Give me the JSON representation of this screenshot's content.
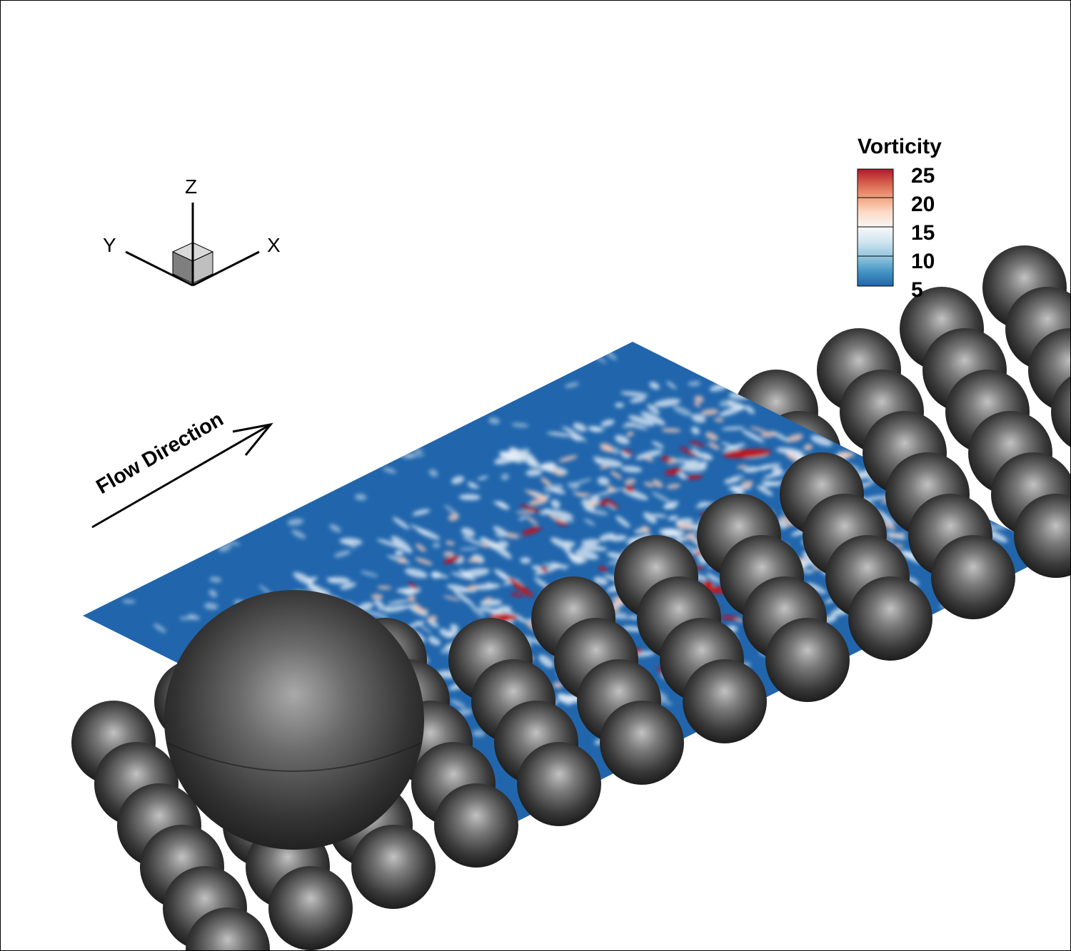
{
  "axes_triad": {
    "x_label": "X",
    "y_label": "Y",
    "z_label": "Z"
  },
  "annotation": {
    "flow_label": "Flow Direction"
  },
  "legend": {
    "title": "Vorticity",
    "ticks": [
      "25",
      "20",
      "15",
      "10",
      "5"
    ],
    "colors": [
      "#b2182b",
      "#d6604d",
      "#f4a582",
      "#fddbc7",
      "#f7f7f7",
      "#d1e5f0",
      "#92c5de",
      "#4393c3",
      "#2166ac"
    ]
  },
  "colors": {
    "plane_base": "#2166ac",
    "vortex_light": "#eaf2f8",
    "vortex_mid": "#f4c7b5",
    "vortex_hot": "#c1121f",
    "sphere_dark": "#1f1f1f",
    "sphere_light": "#b8b8b8"
  }
}
